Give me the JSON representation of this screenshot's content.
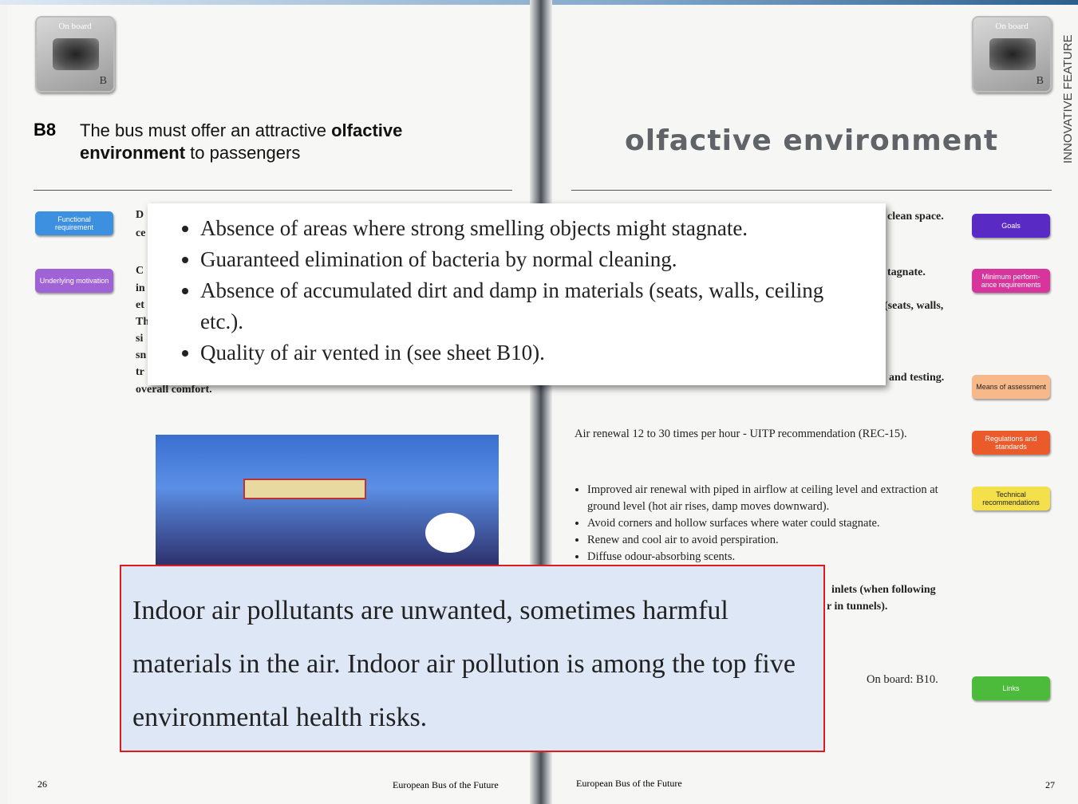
{
  "left_page": {
    "badge": {
      "label": "On board",
      "letter": "B"
    },
    "sheet_code": "B8",
    "heading": {
      "lead": "The bus must offer an attractive ",
      "bold": "olfactive environment",
      "tail": " to passengers"
    },
    "tags": [
      "Functional requirement",
      "Underlying motivation"
    ],
    "text_fragments": [
      "D",
      "ce",
      "C",
      "in",
      "et",
      "Th",
      "si",
      "sn",
      "tr",
      "overall comfort."
    ],
    "page_number": 26,
    "footer": "European Bus of the Future"
  },
  "right_page": {
    "side_label": "INNOVATIVE FEATURE",
    "badge": {
      "label": "On board",
      "letter": "B"
    },
    "title": "olfactive environment",
    "tags": [
      "Goals",
      "Minimum perform-ance requirements",
      "Means of assessment",
      "Regulations and standards",
      "Technical recommendations",
      "Links"
    ],
    "text_fragments": [
      "clean space.",
      "tagnate.",
      "(seats, walls,",
      "and testing.",
      "inlets (when following",
      "r in tunnels)."
    ],
    "regulation": "Air renewal 12 to 30 times per hour - UITP recommendation (REC-15).",
    "recommendations": [
      "Improved air renewal with piped in airflow at ceiling level and extraction at ground level (hot air rises, damp moves downward).",
      "Avoid corners and hollow surfaces where water could stagnate.",
      "Renew and cool air to avoid perspiration.",
      "Diffuse odour-absorbing scents."
    ],
    "links": "On board: B10.",
    "footer": "European Bus of the Future",
    "page_number": 27
  },
  "popup": {
    "bullets": [
      "Absence of areas where strong smelling objects might stagnate.",
      "Guaranteed elimination of bacteria by normal cleaning.",
      "Absence of accumulated dirt and damp in materials (seats, walls, ceiling etc.).",
      "Quality of air vented in (see sheet B10)."
    ]
  },
  "callout": {
    "text": "Indoor air pollutants are unwanted, sometimes harmful materials in the air. Indoor air pollution is among the top five environmental health risks."
  }
}
